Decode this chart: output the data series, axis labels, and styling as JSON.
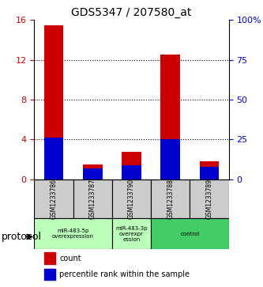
{
  "title": "GDS5347 / 207580_at",
  "samples": [
    "GSM1233786",
    "GSM1233787",
    "GSM1233790",
    "GSM1233788",
    "GSM1233789"
  ],
  "red_values": [
    15.5,
    1.5,
    2.8,
    12.5,
    1.8
  ],
  "blue_values_pct": [
    26,
    7,
    9,
    25,
    8
  ],
  "left_ylim": [
    0,
    16
  ],
  "right_ylim": [
    0,
    100
  ],
  "left_yticks": [
    0,
    4,
    8,
    12,
    16
  ],
  "right_yticks": [
    0,
    25,
    50,
    75,
    100
  ],
  "right_yticklabels": [
    "0",
    "25",
    "50",
    "75",
    "100%"
  ],
  "left_ytick_color": "#cc0000",
  "right_ytick_color": "#0000cc",
  "grid_ticks": [
    4,
    8,
    12
  ],
  "bar_width": 0.5,
  "red_color": "#cc0000",
  "blue_color": "#0000cc",
  "protocol_groups": [
    {
      "label": "miR-483-5p\noverexpression",
      "start": 0,
      "end": 2,
      "color": "#aaffaa"
    },
    {
      "label": "miR-483-3p overexpr\nession",
      "start": 2,
      "end": 3,
      "color": "#aaffaa"
    },
    {
      "label": "control",
      "start": 3,
      "end": 5,
      "color": "#33cc66"
    }
  ],
  "sample_box_color": "#cccccc",
  "legend_red_label": "count",
  "legend_blue_label": "percentile rank within the sample",
  "protocol_label": "protocol",
  "background_color": "#ffffff"
}
